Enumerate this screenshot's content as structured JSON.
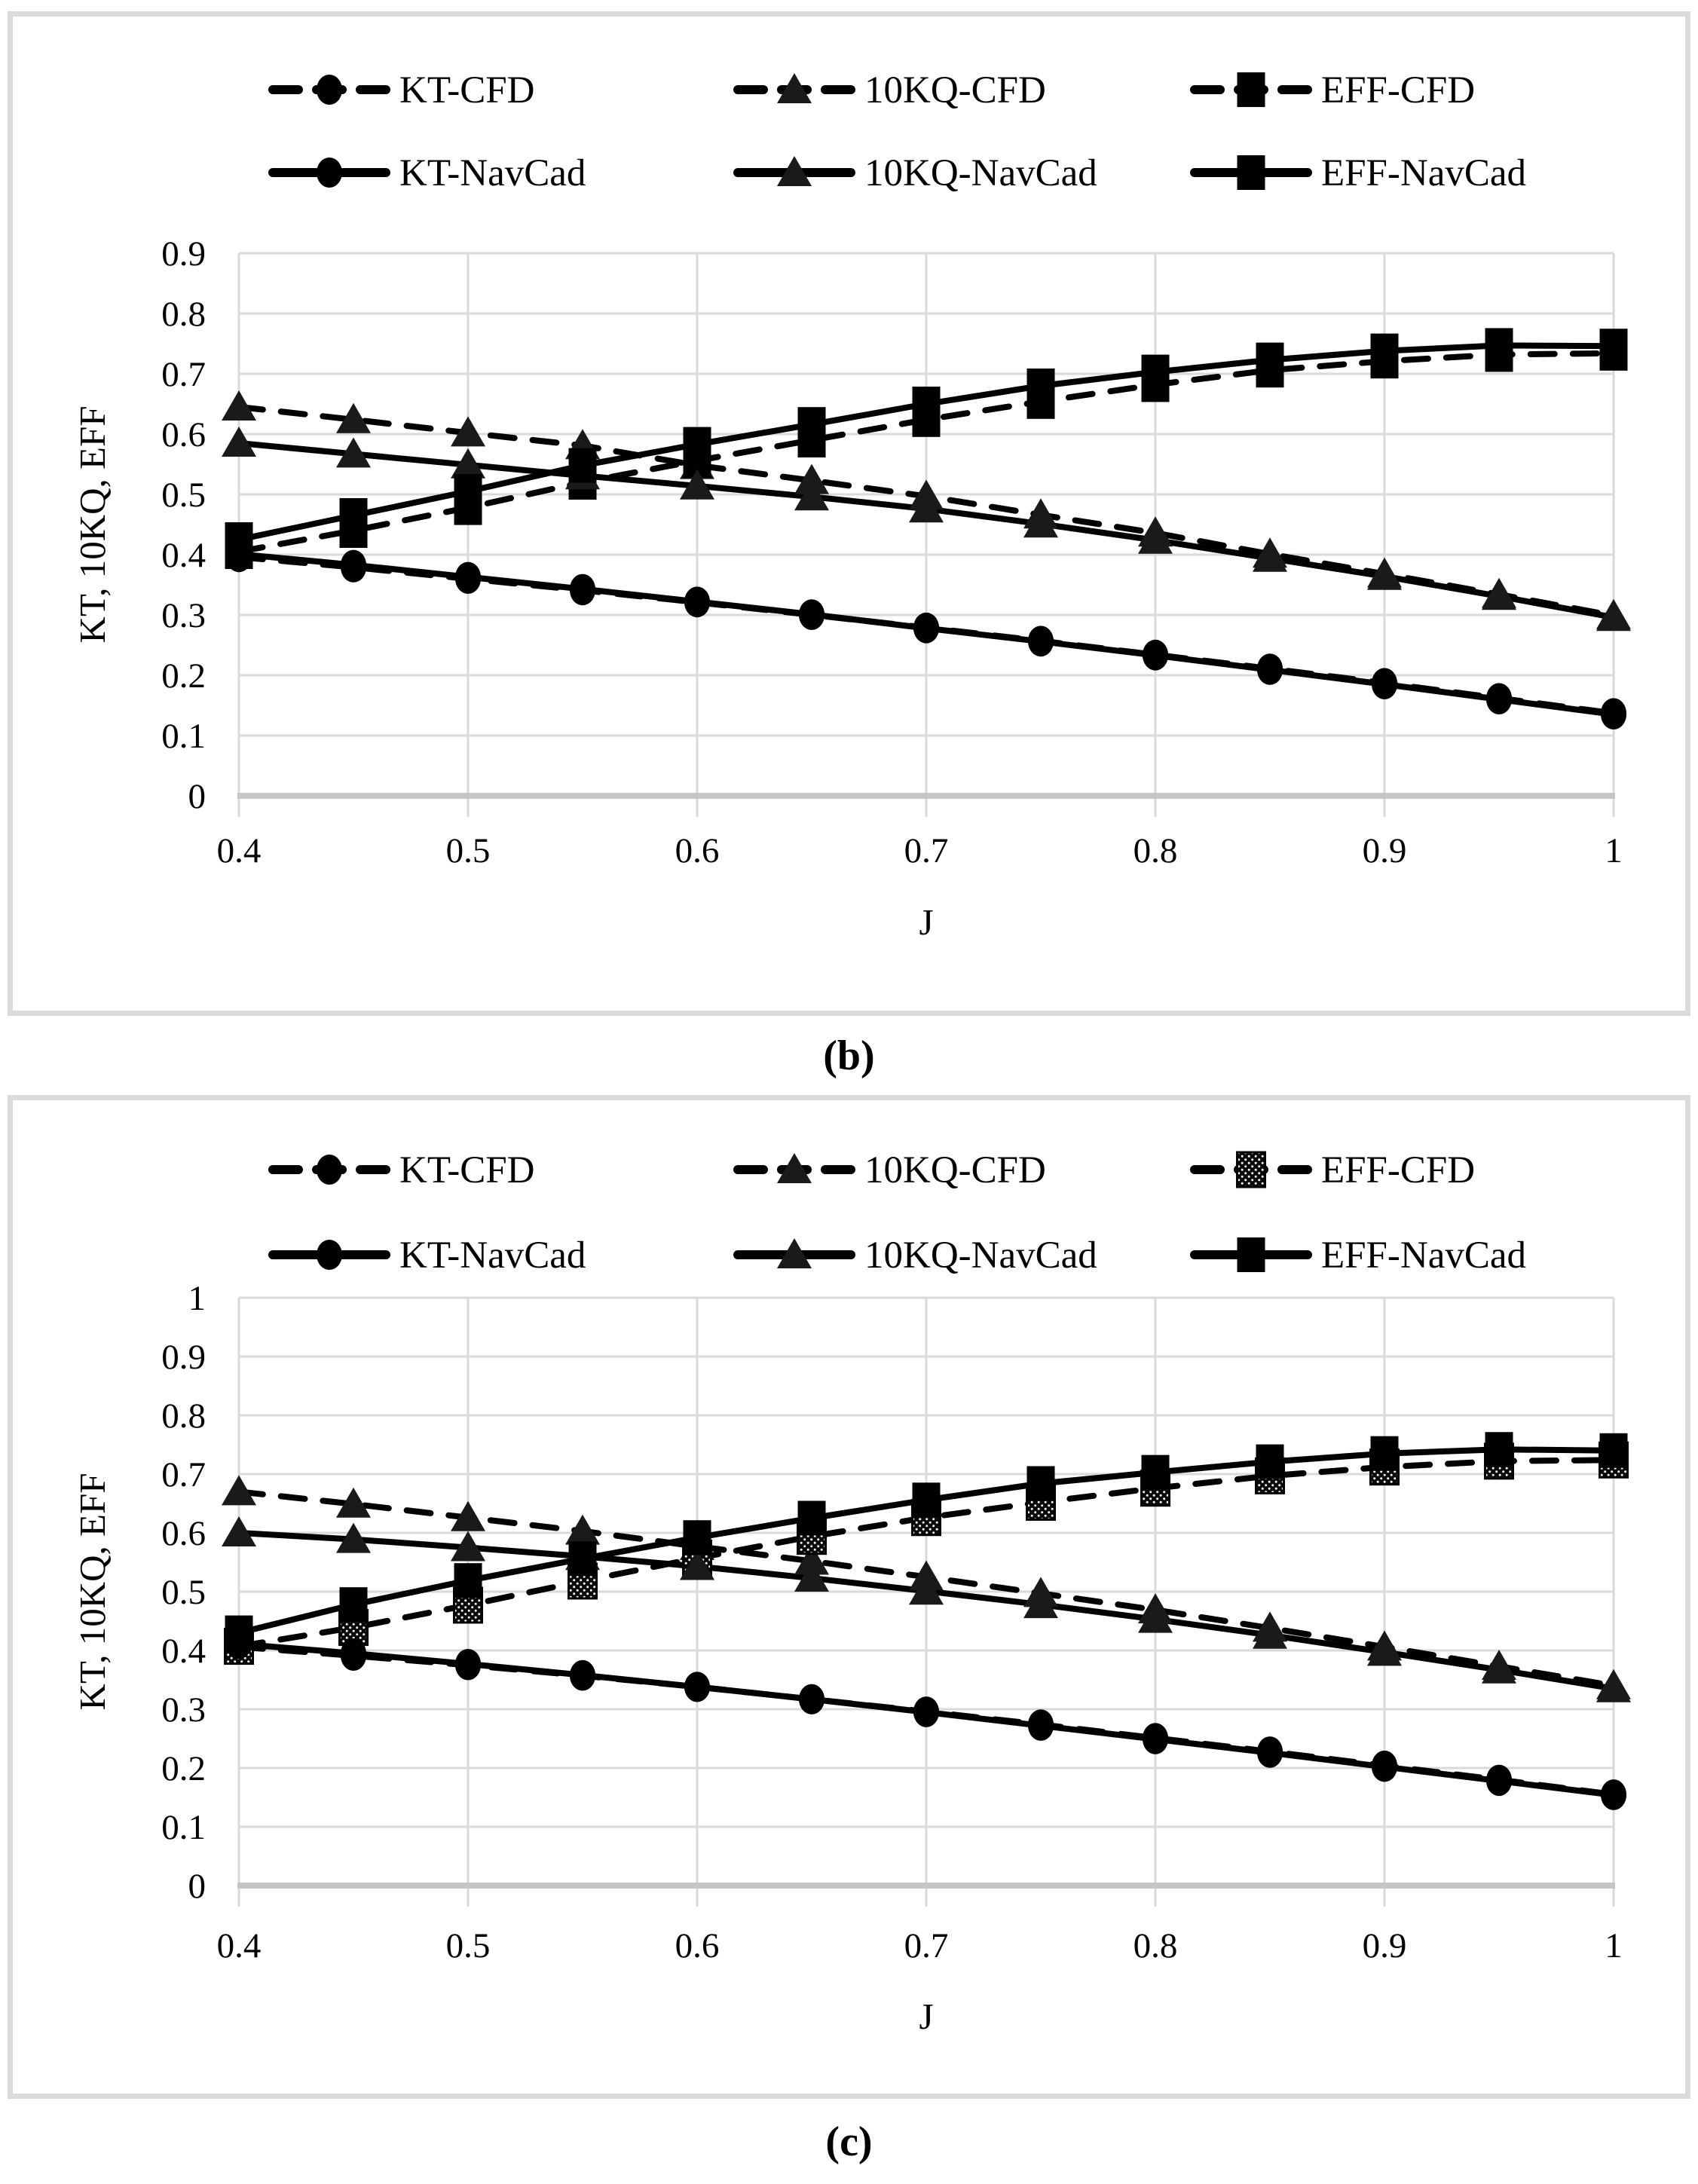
{
  "page": {
    "background": "#ffffff"
  },
  "colors": {
    "series": "#000000",
    "grid": "#d9d9d9",
    "axis_line": "#c6c6c6",
    "panel_border": "#dbdbdb",
    "marker_triangle": "#1a1a1a"
  },
  "chart_data": [
    {
      "id": "b",
      "caption": "(b)",
      "type": "line",
      "title": "",
      "xlabel": "J",
      "ylabel": "KT, 10KQ, EFF",
      "xlim": [
        0.4,
        1.0
      ],
      "ylim": [
        0,
        0.9
      ],
      "grid": true,
      "legend_position": "top",
      "xticks": [
        "0.4",
        "0.5",
        "0.6",
        "0.7",
        "0.8",
        "0.9",
        "1"
      ],
      "yticks": [
        "0",
        "0.1",
        "0.2",
        "0.3",
        "0.4",
        "0.5",
        "0.6",
        "0.7",
        "0.8",
        "0.9"
      ],
      "x": [
        0.4,
        0.45,
        0.5,
        0.55,
        0.6,
        0.65,
        0.7,
        0.75,
        0.8,
        0.85,
        0.9,
        0.95,
        1.0
      ],
      "series": [
        {
          "name": "KT-CFD",
          "style": "dashed",
          "marker": "circle",
          "fill": "solid",
          "values": [
            0.396,
            0.379,
            0.36,
            0.341,
            0.321,
            0.3,
            0.279,
            0.257,
            0.234,
            0.211,
            0.187,
            0.162,
            0.137
          ]
        },
        {
          "name": "10KQ-CFD",
          "style": "dashed",
          "marker": "triangle",
          "fill": "solid",
          "values": [
            0.645,
            0.624,
            0.602,
            0.581,
            0.548,
            0.523,
            0.497,
            0.466,
            0.436,
            0.401,
            0.368,
            0.334,
            0.299
          ]
        },
        {
          "name": "EFF-CFD",
          "style": "dashed",
          "marker": "square",
          "fill": "solid",
          "values": [
            0.405,
            0.44,
            0.478,
            0.52,
            0.556,
            0.59,
            0.624,
            0.654,
            0.682,
            0.706,
            0.721,
            0.732,
            0.734
          ]
        },
        {
          "name": "KT-NavCad",
          "style": "solid",
          "marker": "circle",
          "fill": "solid",
          "values": [
            0.401,
            0.383,
            0.363,
            0.343,
            0.322,
            0.301,
            0.278,
            0.256,
            0.233,
            0.209,
            0.185,
            0.16,
            0.135
          ]
        },
        {
          "name": "10KQ-NavCad",
          "style": "solid",
          "marker": "triangle",
          "fill": "solid",
          "values": [
            0.585,
            0.567,
            0.549,
            0.531,
            0.514,
            0.496,
            0.476,
            0.451,
            0.424,
            0.394,
            0.364,
            0.331,
            0.296
          ]
        },
        {
          "name": "EFF-NavCad",
          "style": "solid",
          "marker": "square",
          "fill": "solid",
          "values": [
            0.425,
            0.465,
            0.505,
            0.548,
            0.583,
            0.616,
            0.65,
            0.68,
            0.703,
            0.723,
            0.738,
            0.747,
            0.746
          ]
        }
      ]
    },
    {
      "id": "c",
      "caption": "(c)",
      "type": "line",
      "title": "",
      "xlabel": "J",
      "ylabel": "KT, 10KQ, EFF",
      "xlim": [
        0.4,
        1.0
      ],
      "ylim": [
        0,
        1.0
      ],
      "grid": true,
      "legend_position": "top",
      "xticks": [
        "0.4",
        "0.5",
        "0.6",
        "0.7",
        "0.8",
        "0.9",
        "1"
      ],
      "yticks": [
        "0",
        "0.1",
        "0.2",
        "0.3",
        "0.4",
        "0.5",
        "0.6",
        "0.7",
        "0.8",
        "0.9",
        "1"
      ],
      "x": [
        0.4,
        0.45,
        0.5,
        0.55,
        0.6,
        0.65,
        0.7,
        0.75,
        0.8,
        0.85,
        0.9,
        0.95,
        1.0
      ],
      "series": [
        {
          "name": "KT-CFD",
          "style": "dashed",
          "marker": "circle",
          "fill": "solid",
          "values": [
            0.406,
            0.391,
            0.375,
            0.357,
            0.338,
            0.317,
            0.296,
            0.274,
            0.251,
            0.228,
            0.204,
            0.18,
            0.155
          ]
        },
        {
          "name": "10KQ-CFD",
          "style": "dashed",
          "marker": "triangle",
          "fill": "solid",
          "values": [
            0.67,
            0.649,
            0.626,
            0.603,
            0.577,
            0.552,
            0.525,
            0.497,
            0.469,
            0.438,
            0.406,
            0.373,
            0.34
          ]
        },
        {
          "name": "EFF-CFD",
          "style": "dashed",
          "marker": "square",
          "fill": "stipple",
          "values": [
            0.407,
            0.439,
            0.477,
            0.518,
            0.557,
            0.594,
            0.626,
            0.652,
            0.676,
            0.697,
            0.712,
            0.722,
            0.724
          ]
        },
        {
          "name": "KT-NavCad",
          "style": "solid",
          "marker": "circle",
          "fill": "solid",
          "values": [
            0.411,
            0.395,
            0.377,
            0.358,
            0.338,
            0.317,
            0.295,
            0.272,
            0.249,
            0.226,
            0.202,
            0.178,
            0.154
          ]
        },
        {
          "name": "10KQ-NavCad",
          "style": "solid",
          "marker": "triangle",
          "fill": "solid",
          "values": [
            0.6,
            0.589,
            0.575,
            0.56,
            0.543,
            0.523,
            0.501,
            0.478,
            0.453,
            0.426,
            0.397,
            0.367,
            0.335
          ]
        },
        {
          "name": "EFF-NavCad",
          "style": "solid",
          "marker": "square",
          "fill": "solid",
          "values": [
            0.43,
            0.478,
            0.519,
            0.556,
            0.592,
            0.625,
            0.656,
            0.684,
            0.703,
            0.721,
            0.735,
            0.742,
            0.74
          ]
        }
      ]
    }
  ]
}
